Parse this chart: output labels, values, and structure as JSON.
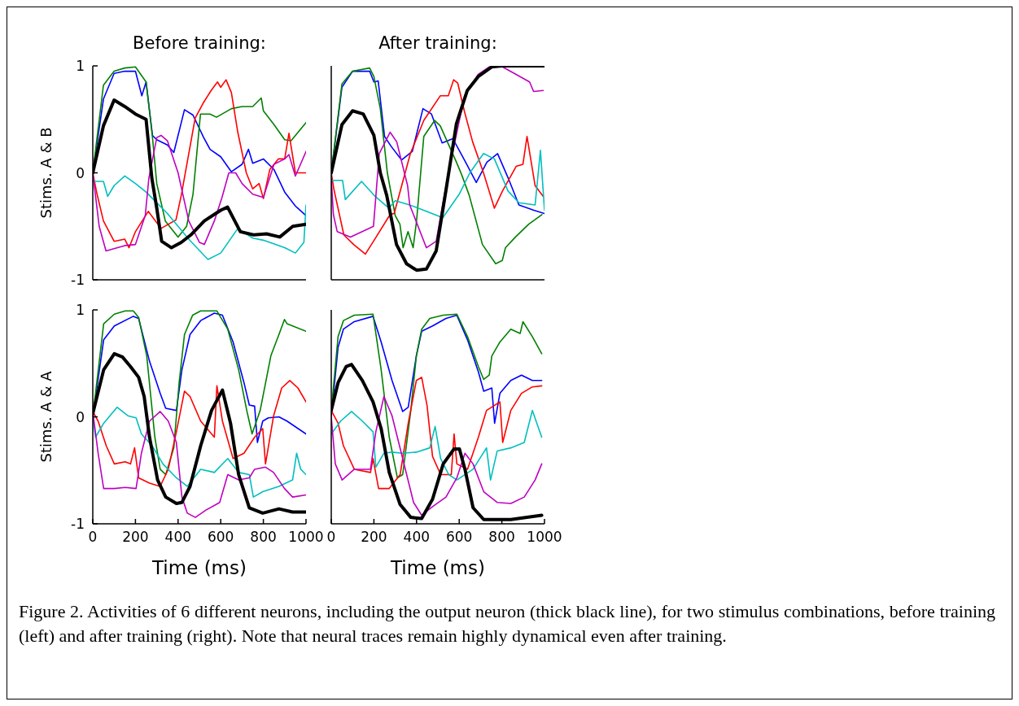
{
  "chart_data": [
    {
      "type": "line",
      "title": "Before training:",
      "ylabel": "Stims. A & B",
      "xlim": [
        0,
        1000
      ],
      "ylim": [
        -1,
        1
      ],
      "xticks": [
        0,
        200,
        400,
        600,
        800,
        1000
      ],
      "yticks": [
        -1,
        0,
        1
      ],
      "tick_labels": "y",
      "marker": "none",
      "line_style": "solid",
      "annotations": [
        "Figure 2. Activities of 6 different neurons, including the output neuron (thick black line), for two stimulus combinations, before training (left) and after training (right). Note that neural traces remain highly dynamical even after training."
      ],
      "series": [
        {
          "color": "#0000ff",
          "x": [
            0,
            50,
            100,
            150,
            200,
            230,
            250,
            280,
            300,
            350,
            380,
            430,
            470,
            520,
            550,
            600,
            650,
            700,
            730,
            750,
            800,
            850,
            900,
            950,
            1000
          ],
          "values": [
            0,
            0.69,
            0.93,
            0.95,
            0.95,
            0.72,
            0.85,
            0.35,
            0.31,
            0.26,
            0.19,
            0.59,
            0.54,
            0.33,
            0.22,
            0.15,
            0.01,
            0.08,
            0.22,
            0.09,
            0.13,
            0.03,
            -0.18,
            -0.31,
            -0.4
          ]
        },
        {
          "color": "#008000",
          "x": [
            0,
            50,
            100,
            150,
            200,
            250,
            280,
            300,
            340,
            400,
            440,
            470,
            505,
            550,
            580,
            650,
            700,
            750,
            790,
            800,
            850,
            900,
            930,
            1000
          ],
          "values": [
            0,
            0.82,
            0.95,
            0.98,
            0.99,
            0.85,
            0.33,
            -0.1,
            -0.45,
            -0.6,
            -0.5,
            -0.2,
            0.55,
            0.55,
            0.52,
            0.6,
            0.62,
            0.62,
            0.7,
            0.58,
            0.45,
            0.31,
            0.3,
            0.47
          ]
        },
        {
          "color": "#ff0000",
          "x": [
            0,
            20,
            50,
            100,
            150,
            170,
            200,
            260,
            320,
            390,
            415,
            480,
            517,
            555,
            585,
            600,
            625,
            650,
            680,
            720,
            750,
            780,
            800,
            830,
            870,
            900,
            920,
            950,
            1000
          ],
          "values": [
            0,
            -0.2,
            -0.45,
            -0.64,
            -0.62,
            -0.7,
            -0.55,
            -0.36,
            -0.52,
            -0.44,
            -0.21,
            0.51,
            0.65,
            0.77,
            0.85,
            0.8,
            0.87,
            0.75,
            0.38,
            0,
            -0.15,
            -0.1,
            -0.24,
            0.03,
            0.13,
            0.13,
            0.37,
            0,
            0
          ]
        },
        {
          "color": "#00bfbf",
          "x": [
            0,
            50,
            70,
            100,
            150,
            200,
            250,
            300,
            350,
            400,
            450,
            540,
            600,
            680,
            750,
            800,
            900,
            950,
            990,
            1000
          ],
          "values": [
            -0.08,
            -0.08,
            -0.22,
            -0.12,
            -0.03,
            -0.1,
            -0.18,
            -0.28,
            -0.38,
            -0.5,
            -0.62,
            -0.81,
            -0.75,
            -0.52,
            -0.61,
            -0.63,
            -0.7,
            -0.75,
            -0.65,
            -0.3
          ]
        },
        {
          "color": "#bf00bf",
          "x": [
            0,
            30,
            62,
            150,
            200,
            246,
            263,
            300,
            320,
            350,
            400,
            450,
            500,
            523,
            570,
            606,
            638,
            670,
            700,
            750,
            800,
            850,
            900,
            920,
            950,
            1000
          ],
          "values": [
            0,
            -0.5,
            -0.73,
            -0.68,
            -0.67,
            -0.4,
            -0.05,
            0.33,
            0.35,
            0.3,
            0,
            -0.45,
            -0.65,
            -0.67,
            -0.45,
            -0.23,
            0,
            0,
            -0.1,
            -0.2,
            -0.23,
            0.08,
            0.13,
            0.17,
            -0.03,
            0.2
          ]
        },
        {
          "color": "#000000",
          "x": [
            0,
            50,
            100,
            150,
            200,
            250,
            277,
            300,
            323,
            369,
            415,
            460,
            523,
            600,
            632,
            692,
            754,
            815,
            877,
            938,
            1000
          ],
          "values": [
            0,
            0.44,
            0.68,
            0.62,
            0.55,
            0.5,
            -0.05,
            -0.33,
            -0.64,
            -0.7,
            -0.65,
            -0.58,
            -0.45,
            -0.35,
            -0.32,
            -0.55,
            -0.58,
            -0.57,
            -0.6,
            -0.5,
            -0.48
          ]
        }
      ]
    },
    {
      "type": "line",
      "title": "After training:",
      "xlim": [
        0,
        1000
      ],
      "ylim": [
        -1,
        1
      ],
      "xticks": [
        0,
        200,
        400,
        600,
        800,
        1000
      ],
      "yticks": [
        -1,
        0,
        1
      ],
      "tick_labels": false,
      "marker": "none",
      "line_style": "solid",
      "series": [
        {
          "color": "#0000ff",
          "x": [
            0,
            50,
            100,
            180,
            200,
            220,
            250,
            280,
            330,
            380,
            430,
            470,
            520,
            570,
            630,
            680,
            730,
            780,
            830,
            880,
            950,
            1000
          ],
          "values": [
            0,
            0.8,
            0.95,
            0.95,
            0.85,
            0.86,
            0.34,
            0.25,
            0.12,
            0.2,
            0.6,
            0.55,
            0.28,
            0.32,
            0.1,
            -0.09,
            0.1,
            0.18,
            -0.05,
            -0.3,
            -0.35,
            -0.38
          ]
        },
        {
          "color": "#008000",
          "x": [
            0,
            50,
            100,
            180,
            200,
            230,
            263,
            300,
            322,
            337,
            360,
            384,
            400,
            434,
            485,
            511,
            587,
            612,
            647,
            709,
            771,
            802,
            817,
            864,
            926,
            988
          ],
          "values": [
            0,
            0.83,
            0.95,
            0.98,
            0.9,
            0.6,
            0,
            -0.4,
            -0.48,
            -0.7,
            -0.55,
            -0.7,
            -0.45,
            0.34,
            0.49,
            0.44,
            0.1,
            -0.02,
            -0.21,
            -0.67,
            -0.85,
            -0.82,
            -0.7,
            -0.6,
            -0.48,
            -0.39
          ]
        },
        {
          "color": "#ff0000",
          "x": [
            0,
            12,
            59,
            105,
            160,
            198,
            276,
            295,
            371,
            434,
            511,
            549,
            574,
            593,
            625,
            663,
            714,
            765,
            803,
            867,
            899,
            918,
            956,
            994
          ],
          "values": [
            0,
            -0.15,
            -0.58,
            -0.67,
            -0.76,
            -0.64,
            -0.39,
            -0.38,
            0.18,
            0.49,
            0.72,
            0.72,
            0.87,
            0.84,
            0.57,
            0.29,
            0,
            -0.33,
            -0.17,
            0.06,
            0.08,
            0.34,
            -0.12,
            -0.22
          ]
        },
        {
          "color": "#00bfbf",
          "x": [
            0,
            53,
            66,
            142,
            206,
            270,
            300,
            368,
            446,
            523,
            600,
            650,
            714,
            765,
            829,
            880,
            956,
            981,
            1000
          ],
          "values": [
            -0.07,
            -0.07,
            -0.25,
            -0.08,
            -0.22,
            -0.33,
            -0.26,
            -0.3,
            -0.36,
            -0.42,
            -0.2,
            0,
            0.18,
            0.13,
            -0.17,
            -0.28,
            -0.3,
            0.21,
            -0.35
          ]
        },
        {
          "color": "#bf00bf",
          "x": [
            0,
            10,
            28,
            90,
            198,
            225,
            276,
            307,
            358,
            368,
            446,
            492,
            549,
            625,
            689,
            740,
            803,
            867,
            930,
            949,
            994
          ],
          "values": [
            -0.05,
            -0.39,
            -0.55,
            -0.6,
            -0.5,
            0.18,
            0.38,
            0.29,
            -0.12,
            -0.3,
            -0.7,
            -0.64,
            0,
            0.72,
            0.92,
            0.99,
            0.99,
            0.92,
            0.85,
            0.76,
            0.77
          ]
        },
        {
          "color": "#000000",
          "x": [
            0,
            50,
            100,
            150,
            200,
            230,
            260,
            306,
            353,
            400,
            446,
            492,
            539,
            587,
            638,
            689,
            752,
            800,
            1000
          ],
          "values": [
            0,
            0.45,
            0.58,
            0.55,
            0.35,
            0,
            -0.21,
            -0.67,
            -0.85,
            -0.91,
            -0.9,
            -0.73,
            -0.15,
            0.46,
            0.77,
            0.9,
            0.99,
            1,
            1
          ]
        }
      ]
    },
    {
      "type": "line",
      "ylabel": "Stims. A & A",
      "xlabel": "Time (ms)",
      "xlim": [
        0,
        1000
      ],
      "ylim": [
        -1,
        1
      ],
      "xticks": [
        0,
        200,
        400,
        600,
        800,
        1000
      ],
      "yticks": [
        -1,
        0,
        1
      ],
      "marker": "none",
      "line_style": "solid",
      "series": [
        {
          "color": "#0000ff",
          "x": [
            0,
            51,
            101,
            190,
            215,
            266,
            316,
            342,
            392,
            418,
            456,
            506,
            570,
            608,
            658,
            709,
            734,
            759,
            772,
            797,
            823,
            873,
            911,
            1000
          ],
          "values": [
            0,
            0.72,
            0.85,
            0.94,
            0.92,
            0.52,
            0.22,
            0.08,
            0.06,
            0.44,
            0.77,
            0.9,
            0.97,
            0.95,
            0.7,
            0.32,
            0.11,
            0.1,
            -0.24,
            -0.04,
            -0.01,
            0,
            -0.04,
            -0.16
          ]
        },
        {
          "color": "#008000",
          "x": [
            0,
            51,
            101,
            152,
            190,
            215,
            253,
            291,
            316,
            342,
            380,
            405,
            430,
            468,
            506,
            582,
            633,
            684,
            722,
            747,
            785,
            835,
            873,
            899,
            911,
            1000
          ],
          "values": [
            0,
            0.87,
            0.96,
            0.99,
            0.99,
            0.93,
            0.57,
            -0.19,
            -0.49,
            -0.54,
            -0.29,
            0.32,
            0.77,
            0.95,
            0.99,
            0.99,
            0.82,
            0.44,
            0.06,
            -0.16,
            0.06,
            0.57,
            0.77,
            0.91,
            0.87,
            0.8
          ]
        },
        {
          "color": "#ff0000",
          "x": [
            0,
            25,
            63,
            101,
            152,
            177,
            196,
            215,
            266,
            316,
            354,
            392,
            430,
            456,
            506,
            570,
            582,
            608,
            658,
            709,
            759,
            797,
            810,
            848,
            886,
            924,
            962,
            1000
          ],
          "values": [
            0.05,
            -0.04,
            -0.27,
            -0.44,
            -0.42,
            -0.44,
            -0.29,
            -0.57,
            -0.62,
            -0.65,
            -0.49,
            -0.14,
            0.24,
            0.19,
            -0.04,
            -0.19,
            0.29,
            -0.04,
            -0.39,
            -0.34,
            -0.19,
            -0.11,
            -0.44,
            0.01,
            0.27,
            0.34,
            0.27,
            0.14
          ]
        },
        {
          "color": "#00bfbf",
          "x": [
            0,
            13,
            51,
            114,
            165,
            203,
            228,
            278,
            329,
            392,
            443,
            506,
            570,
            633,
            684,
            734,
            753,
            797,
            873,
            937,
            956,
            975,
            1000
          ],
          "values": [
            0,
            -0.19,
            -0.06,
            0.09,
            0.01,
            -0.01,
            -0.16,
            -0.27,
            -0.44,
            -0.57,
            -0.65,
            -0.49,
            -0.52,
            -0.39,
            -0.52,
            -0.54,
            -0.75,
            -0.7,
            -0.65,
            -0.59,
            -0.34,
            -0.49,
            -0.54
          ]
        },
        {
          "color": "#bf00bf",
          "x": [
            0,
            25,
            51,
            101,
            152,
            203,
            228,
            266,
            316,
            354,
            392,
            418,
            443,
            481,
            532,
            595,
            633,
            684,
            734,
            759,
            810,
            848,
            899,
            937,
            1000
          ],
          "values": [
            0.05,
            -0.34,
            -0.67,
            -0.67,
            -0.66,
            -0.67,
            -0.34,
            -0.04,
            0.05,
            -0.04,
            -0.24,
            -0.75,
            -0.9,
            -0.94,
            -0.87,
            -0.8,
            -0.54,
            -0.59,
            -0.57,
            -0.49,
            -0.47,
            -0.52,
            -0.67,
            -0.75,
            -0.73
          ]
        },
        {
          "color": "#000000",
          "x": [
            0,
            51,
            101,
            139,
            177,
            215,
            241,
            266,
            304,
            342,
            392,
            418,
            456,
            506,
            557,
            608,
            646,
            684,
            734,
            797,
            873,
            937,
            1000
          ],
          "values": [
            0.03,
            0.44,
            0.59,
            0.56,
            0.47,
            0.37,
            0.19,
            -0.19,
            -0.59,
            -0.75,
            -0.81,
            -0.8,
            -0.65,
            -0.27,
            0.06,
            0.25,
            -0.06,
            -0.54,
            -0.85,
            -0.9,
            -0.86,
            -0.89,
            -0.89
          ]
        }
      ]
    },
    {
      "type": "line",
      "xlabel": "Time (ms)",
      "xlim": [
        0,
        1000
      ],
      "ylim": [
        -1,
        1
      ],
      "xticks": [
        0,
        200,
        400,
        600,
        800,
        1000
      ],
      "yticks": [
        -1,
        0,
        1
      ],
      "tick_labels": "x",
      "marker": "none",
      "line_style": "solid",
      "series": [
        {
          "color": "#0000ff",
          "x": [
            0,
            32,
            57,
            108,
            196,
            234,
            285,
            335,
            361,
            399,
            424,
            475,
            538,
            589,
            639,
            690,
            715,
            753,
            766,
            791,
            842,
            892,
            943,
            987
          ],
          "values": [
            0,
            0.65,
            0.82,
            0.89,
            0.94,
            0.7,
            0.34,
            0.05,
            0.09,
            0.57,
            0.8,
            0.85,
            0.92,
            0.95,
            0.72,
            0.42,
            0.24,
            0.27,
            -0.06,
            0.22,
            0.34,
            0.39,
            0.34,
            0.34
          ]
        },
        {
          "color": "#008000",
          "x": [
            0,
            32,
            57,
            108,
            196,
            234,
            272,
            310,
            335,
            373,
            399,
            424,
            462,
            525,
            589,
            639,
            690,
            715,
            741,
            753,
            791,
            842,
            886,
            899,
            943,
            987
          ],
          "values": [
            0.06,
            0.75,
            0.9,
            0.95,
            0.96,
            0.44,
            -0.19,
            -0.57,
            -0.54,
            0.06,
            0.57,
            0.82,
            0.92,
            0.95,
            0.96,
            0.75,
            0.47,
            0.35,
            0.39,
            0.57,
            0.7,
            0.82,
            0.78,
            0.89,
            0.75,
            0.59
          ]
        },
        {
          "color": "#ff0000",
          "x": [
            0,
            32,
            57,
            108,
            184,
            196,
            222,
            272,
            323,
            361,
            399,
            424,
            449,
            475,
            513,
            563,
            576,
            589,
            639,
            690,
            728,
            791,
            804,
            842,
            892,
            943,
            987
          ],
          "values": [
            0.06,
            -0.06,
            -0.27,
            -0.49,
            -0.52,
            -0.39,
            -0.67,
            -0.67,
            -0.54,
            -0.06,
            0.34,
            0.37,
            0.11,
            -0.37,
            -0.54,
            -0.54,
            -0.16,
            -0.44,
            -0.49,
            -0.19,
            0.06,
            0.14,
            -0.24,
            0.06,
            0.22,
            0.28,
            0.29
          ]
        },
        {
          "color": "#00bfbf",
          "x": [
            0,
            44,
            95,
            146,
            196,
            209,
            247,
            285,
            335,
            399,
            462,
            487,
            513,
            551,
            589,
            665,
            728,
            747,
            778,
            842,
            905,
            943,
            987
          ],
          "values": [
            -0.16,
            -0.04,
            0.05,
            -0.04,
            -0.14,
            -0.47,
            -0.34,
            -0.33,
            -0.34,
            -0.33,
            -0.29,
            -0.09,
            -0.39,
            -0.54,
            -0.59,
            -0.49,
            -0.29,
            -0.59,
            -0.32,
            -0.29,
            -0.24,
            0.06,
            -0.19
          ]
        },
        {
          "color": "#bf00bf",
          "x": [
            0,
            19,
            51,
            108,
            184,
            209,
            247,
            285,
            335,
            386,
            424,
            475,
            538,
            589,
            627,
            665,
            715,
            778,
            842,
            905,
            956,
            987
          ],
          "values": [
            0,
            -0.44,
            -0.59,
            -0.49,
            -0.49,
            -0.14,
            0.19,
            0.01,
            -0.39,
            -0.8,
            -0.92,
            -0.84,
            -0.75,
            -0.57,
            -0.34,
            -0.44,
            -0.7,
            -0.8,
            -0.81,
            -0.75,
            -0.59,
            -0.44
          ]
        },
        {
          "color": "#000000",
          "x": [
            0,
            32,
            70,
            95,
            146,
            196,
            234,
            272,
            323,
            373,
            424,
            475,
            525,
            576,
            601,
            627,
            665,
            715,
            842,
            987
          ],
          "values": [
            0.06,
            0.32,
            0.47,
            0.49,
            0.34,
            0.14,
            -0.11,
            -0.52,
            -0.82,
            -0.94,
            -0.95,
            -0.77,
            -0.44,
            -0.3,
            -0.3,
            -0.49,
            -0.85,
            -0.96,
            -0.96,
            -0.92
          ]
        }
      ]
    }
  ]
}
